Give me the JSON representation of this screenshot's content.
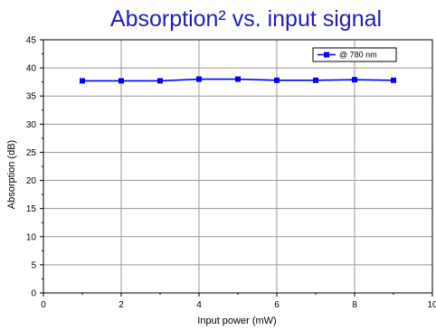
{
  "colors": {
    "series": "#0000ff",
    "grid": "#999999",
    "title": "#1f1fb4",
    "axis": "#000000"
  },
  "chart_data": {
    "type": "line",
    "title": "Absorption² vs. input signal",
    "xlabel": "Input power (mW)",
    "ylabel": "Absorption (dB)",
    "xlim": [
      0,
      10
    ],
    "ylim": [
      0,
      45
    ],
    "xticks": [
      "0",
      "2",
      "4",
      "6",
      "8",
      "10"
    ],
    "yticks": [
      "0",
      "5",
      "10",
      "15",
      "20",
      "25",
      "30",
      "35",
      "40",
      "45"
    ],
    "grid": true,
    "legend_position": "top-right",
    "series": [
      {
        "name": "@ 780 nm",
        "x": [
          1,
          2,
          3,
          4,
          5,
          6,
          7,
          8,
          9
        ],
        "y": [
          37.7,
          37.7,
          37.7,
          38.0,
          38.0,
          37.8,
          37.8,
          37.9,
          37.8
        ],
        "marker": "square"
      }
    ]
  }
}
